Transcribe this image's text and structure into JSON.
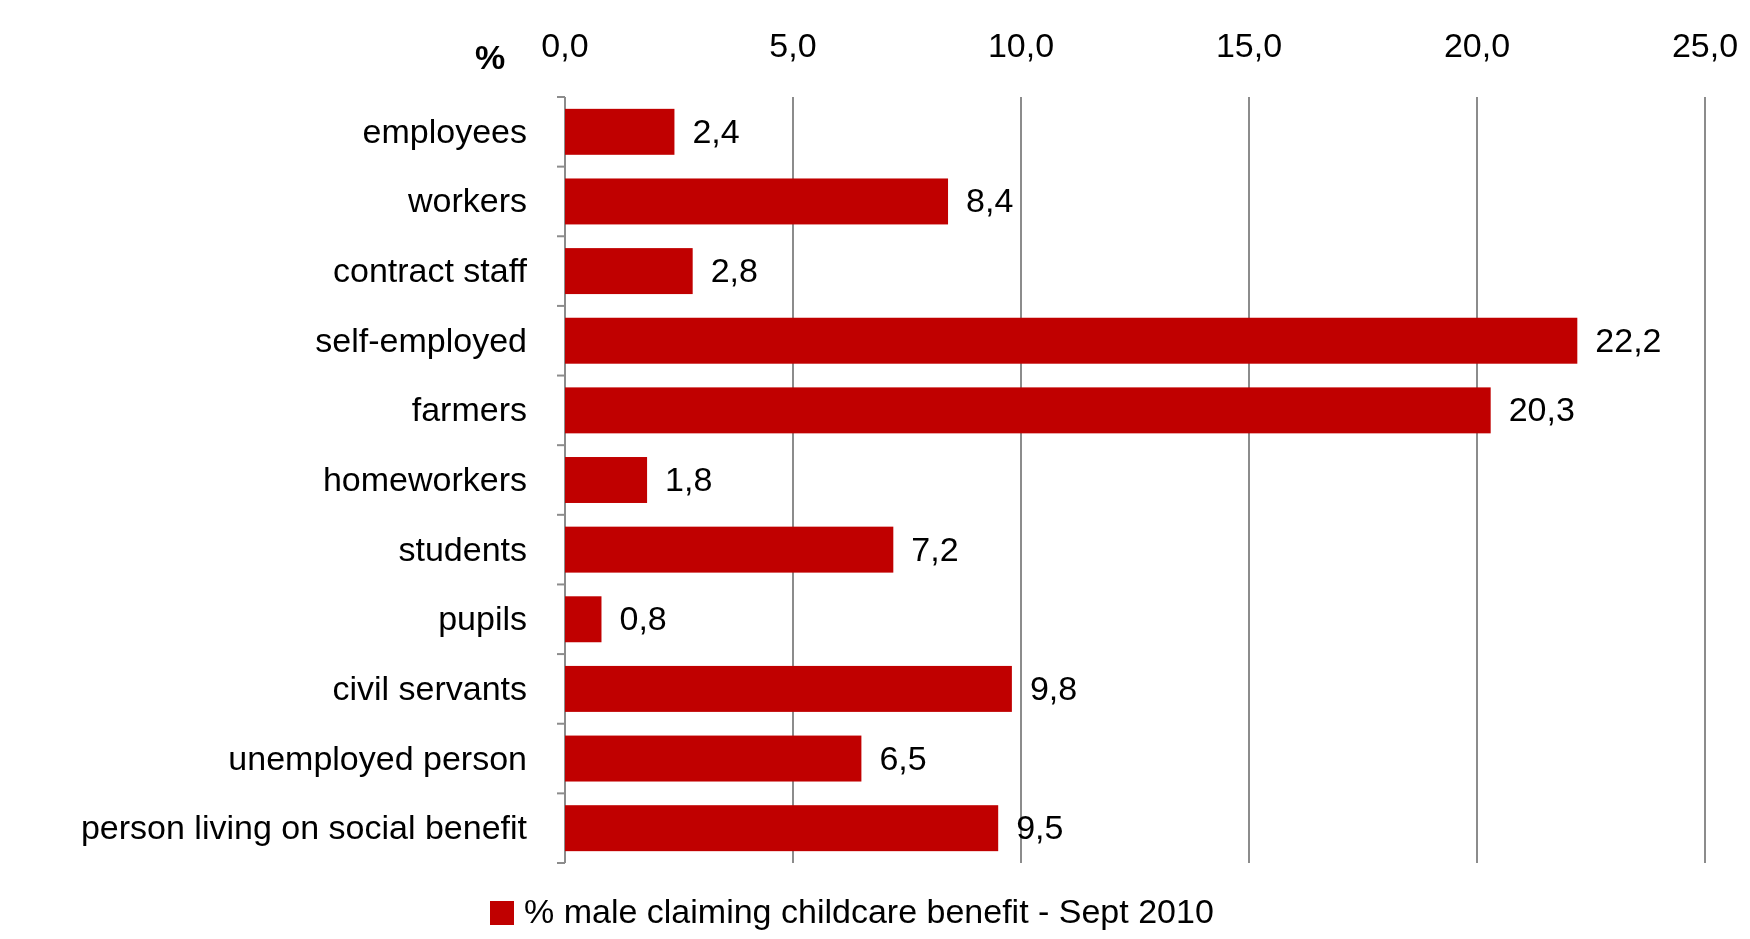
{
  "chart_data": {
    "type": "bar",
    "orientation": "horizontal",
    "xlabel": "%",
    "categories": [
      "employees",
      "workers",
      "contract staff",
      "self-employed",
      "farmers",
      "homeworkers",
      "students",
      "pupils",
      "civil servants",
      "unemployed person",
      "person living on social benefit"
    ],
    "series": [
      {
        "name": "% male claiming childcare benefit - Sept 2010",
        "color": "#c00000",
        "values": [
          2.4,
          8.4,
          2.8,
          22.2,
          20.3,
          1.8,
          7.2,
          0.8,
          9.8,
          6.5,
          9.5
        ],
        "value_labels": [
          "2,4",
          "8,4",
          "2,8",
          "22,2",
          "20,3",
          "1,8",
          "7,2",
          "0,8",
          "9,8",
          "6,5",
          "9,5"
        ]
      }
    ],
    "xlim": [
      0,
      25
    ],
    "xticks": [
      {
        "value": 0,
        "label": "0,0"
      },
      {
        "value": 5,
        "label": "5,0"
      },
      {
        "value": 10,
        "label": "10,0"
      },
      {
        "value": 15,
        "label": "15,0"
      },
      {
        "value": 20,
        "label": "20,0"
      },
      {
        "value": 25,
        "label": "25,0"
      }
    ],
    "grid": "x",
    "legend": "bottom"
  }
}
